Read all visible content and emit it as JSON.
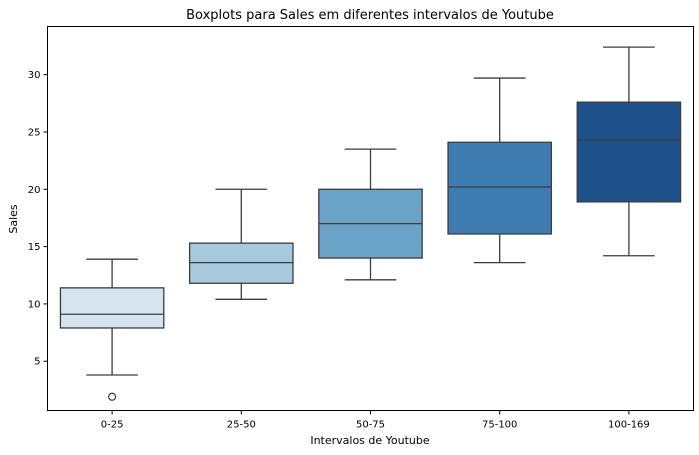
{
  "chart_data": {
    "type": "boxplot",
    "title": "Boxplots para Sales em diferentes intervalos de Youtube",
    "xlabel": "Intervalos de Youtube",
    "ylabel": "Sales",
    "ylim": [
      0.7,
      34.2
    ],
    "yticks": [
      5,
      10,
      15,
      20,
      25,
      30
    ],
    "grid": false,
    "categories": [
      "0-25",
      "25-50",
      "50-75",
      "75-100",
      "100-169"
    ],
    "boxes": [
      {
        "category": "0-25",
        "whisker_low": 3.8,
        "q1": 7.9,
        "median": 9.1,
        "q3": 11.4,
        "whisker_high": 13.9,
        "outliers": [
          1.9
        ],
        "color": "#d6e4f0"
      },
      {
        "category": "25-50",
        "whisker_low": 10.4,
        "q1": 11.8,
        "median": 13.6,
        "q3": 15.3,
        "whisker_high": 20.0,
        "outliers": [],
        "color": "#a8c8dd"
      },
      {
        "category": "50-75",
        "whisker_low": 12.1,
        "q1": 14.0,
        "median": 17.0,
        "q3": 20.0,
        "whisker_high": 23.5,
        "outliers": [],
        "color": "#6ba3c8"
      },
      {
        "category": "75-100",
        "whisker_low": 13.6,
        "q1": 16.1,
        "median": 20.2,
        "q3": 24.1,
        "whisker_high": 29.7,
        "outliers": [],
        "color": "#3e7cb2"
      },
      {
        "category": "100-169",
        "whisker_low": 14.2,
        "q1": 18.9,
        "median": 24.3,
        "q3": 27.6,
        "whisker_high": 32.4,
        "outliers": [],
        "color": "#1e5189"
      }
    ]
  }
}
